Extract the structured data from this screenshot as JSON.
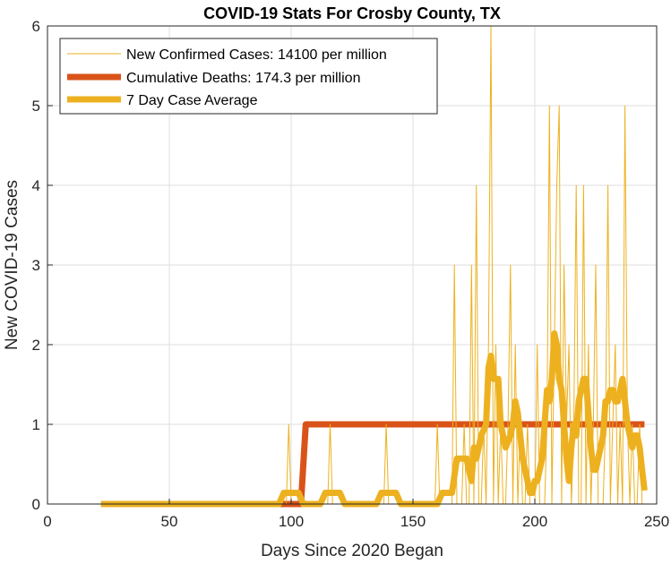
{
  "chart_data": {
    "type": "line",
    "title": "COVID-19 Stats For Crosby County, TX",
    "xlabel": "Days Since 2020 Began",
    "ylabel": "New COVID-19 Cases",
    "xlim": [
      0,
      250
    ],
    "ylim": [
      0,
      6
    ],
    "xticks": [
      "0",
      "50",
      "100",
      "150",
      "200",
      "250"
    ],
    "yticks": [
      "0",
      "1",
      "2",
      "3",
      "4",
      "5",
      "6"
    ],
    "grid": true,
    "legend_position": "top-left",
    "series": [
      {
        "name": "New Confirmed Cases: 14100 per million",
        "color": "#EDB120",
        "line_width": "thin",
        "x": [
          22,
          98,
          99,
          100,
          101,
          115,
          116,
          117,
          138,
          139,
          140,
          159,
          160,
          161,
          162,
          163,
          164,
          165,
          166,
          167,
          168,
          169,
          170,
          171,
          172,
          173,
          174,
          175,
          176,
          177,
          178,
          179,
          180,
          181,
          182,
          183,
          184,
          185,
          186,
          187,
          188,
          189,
          190,
          191,
          192,
          193,
          194,
          195,
          196,
          197,
          198,
          199,
          200,
          201,
          202,
          203,
          204,
          205,
          206,
          207,
          208,
          209,
          210,
          211,
          212,
          213,
          214,
          215,
          216,
          217,
          218,
          219,
          220,
          221,
          222,
          223,
          224,
          225,
          226,
          227,
          228,
          229,
          230,
          231,
          232,
          233,
          234,
          235,
          236,
          237,
          238,
          239,
          240,
          241,
          242,
          243,
          244,
          245
        ],
        "y": [
          0,
          0,
          1,
          0,
          0,
          0,
          1,
          0,
          0,
          1,
          0,
          0,
          1,
          0,
          0,
          0,
          0,
          0,
          0,
          3,
          0,
          0,
          0,
          1,
          0,
          0,
          3,
          0,
          4,
          0,
          0,
          1,
          0,
          2,
          6,
          0,
          2,
          0,
          1,
          0,
          0,
          1,
          3,
          0,
          2,
          0,
          1,
          0,
          0,
          1,
          0,
          0,
          0,
          2,
          0,
          0,
          0,
          1,
          5,
          0,
          2,
          4,
          5,
          0,
          3,
          1,
          2,
          0,
          1,
          4,
          0,
          0,
          4,
          0,
          2,
          0,
          1,
          3,
          0,
          0,
          0,
          1,
          4,
          0,
          1,
          2,
          0,
          1,
          0,
          5,
          1,
          0,
          1,
          0,
          0,
          1,
          0,
          0
        ]
      },
      {
        "name": "Cumulative Deaths: 174.3 per million",
        "color": "#D95319",
        "line_width": "thick",
        "x": [
          22,
          104,
          106,
          245
        ],
        "y": [
          0,
          0,
          1,
          1
        ]
      },
      {
        "name": "7 Day Case Average",
        "color": "#EDB120",
        "line_width": "thick",
        "x": [
          22,
          95,
          97,
          103,
          105,
          112,
          114,
          120,
          122,
          135,
          137,
          143,
          145,
          160,
          162,
          166,
          168,
          172,
          174,
          175,
          176,
          178,
          180,
          181,
          182,
          183,
          184,
          185,
          186,
          188,
          190,
          191,
          192,
          193,
          194,
          195,
          196,
          197,
          198,
          199,
          200,
          201,
          202,
          203,
          204,
          205,
          206,
          207,
          208,
          209,
          210,
          211,
          212,
          213,
          214,
          215,
          216,
          217,
          218,
          219,
          220,
          221,
          222,
          223,
          224,
          225,
          226,
          227,
          228,
          229,
          230,
          231,
          232,
          233,
          234,
          235,
          236,
          237,
          238,
          239,
          240,
          241,
          242,
          243,
          244,
          245
        ],
        "y": [
          0,
          0,
          0.14,
          0.14,
          0,
          0,
          0.14,
          0.14,
          0,
          0,
          0.14,
          0.14,
          0,
          0,
          0.14,
          0.14,
          0.57,
          0.57,
          0.29,
          0.71,
          0.57,
          0.86,
          1.0,
          1.71,
          1.86,
          1.57,
          1.57,
          1.57,
          1.0,
          0.71,
          0.86,
          1.0,
          1.29,
          1.14,
          0.86,
          0.57,
          0.43,
          0.29,
          0.14,
          0.14,
          0.29,
          0.29,
          0.43,
          0.57,
          1.0,
          1.43,
          1.29,
          1.57,
          2.14,
          2.0,
          1.57,
          1.43,
          1.0,
          0.57,
          0.29,
          0.71,
          1.0,
          0.86,
          1.29,
          1.43,
          1.57,
          1.57,
          1.14,
          0.71,
          0.43,
          0.43,
          0.57,
          0.71,
          0.86,
          1.29,
          1.29,
          1.43,
          1.43,
          1.29,
          1.29,
          1.43,
          1.57,
          1.29,
          1.0,
          0.86,
          0.71,
          0.86,
          0.86,
          0.71,
          0.43,
          0.17
        ]
      }
    ],
    "legend": [
      {
        "label": "New Confirmed Cases: 14100 per million",
        "color": "#EDB120",
        "style": "thin"
      },
      {
        "label": "Cumulative Deaths: 174.3 per million",
        "color": "#D95319",
        "style": "thick"
      },
      {
        "label": "7 Day Case Average",
        "color": "#EDB120",
        "style": "thick"
      }
    ]
  }
}
